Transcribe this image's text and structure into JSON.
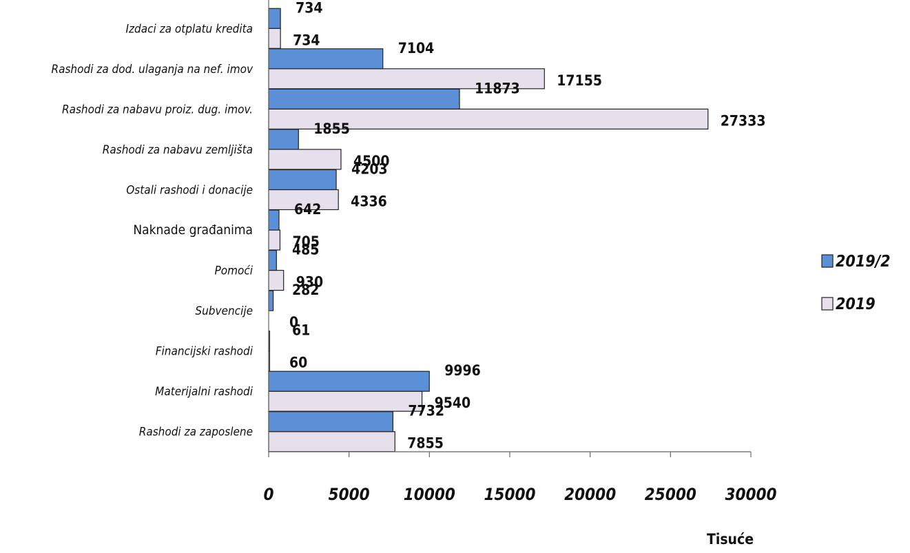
{
  "chart_data": {
    "type": "bar",
    "orientation": "horizontal",
    "unit_label": "Tisuće",
    "categories": [
      "Izdaci za otplatu kredita",
      "Rashodi za dod. ulaganja na nef. imov",
      "Rashodi za nabavu proiz. dug. imov.",
      "Rashodi za nabavu zemljišta",
      "Ostali rashodi i donacije",
      "Naknade građanima",
      "Pomoći",
      "Subvencije",
      "Financijski rashodi",
      "Materijalni rashodi",
      "Rashodi za zaposlene"
    ],
    "series": [
      {
        "name": "2019/2",
        "color": "#5b8fd6",
        "values": [
          734,
          7104,
          11873,
          1855,
          4203,
          642,
          485,
          282,
          61,
          9996,
          7732
        ],
        "labels": [
          "734",
          "7104",
          "11873",
          "1855",
          "4203",
          "642",
          "485",
          "282",
          "61",
          "9996",
          "7732"
        ]
      },
      {
        "name": "2019",
        "color": "#e6e0ec",
        "values": [
          734,
          17155,
          27333,
          4500,
          4336,
          705,
          930,
          0,
          60,
          9540,
          7855
        ],
        "labels": [
          "734",
          "17155",
          "27333",
          "4500",
          "4336",
          "705",
          "930",
          "0",
          "60",
          "9540",
          "7855"
        ]
      }
    ],
    "xlim": [
      0,
      30000
    ],
    "ticks": [
      "0",
      "5000",
      "10000",
      "15000",
      "20000",
      "25000",
      "30000"
    ],
    "grid": false,
    "legend": "right"
  }
}
